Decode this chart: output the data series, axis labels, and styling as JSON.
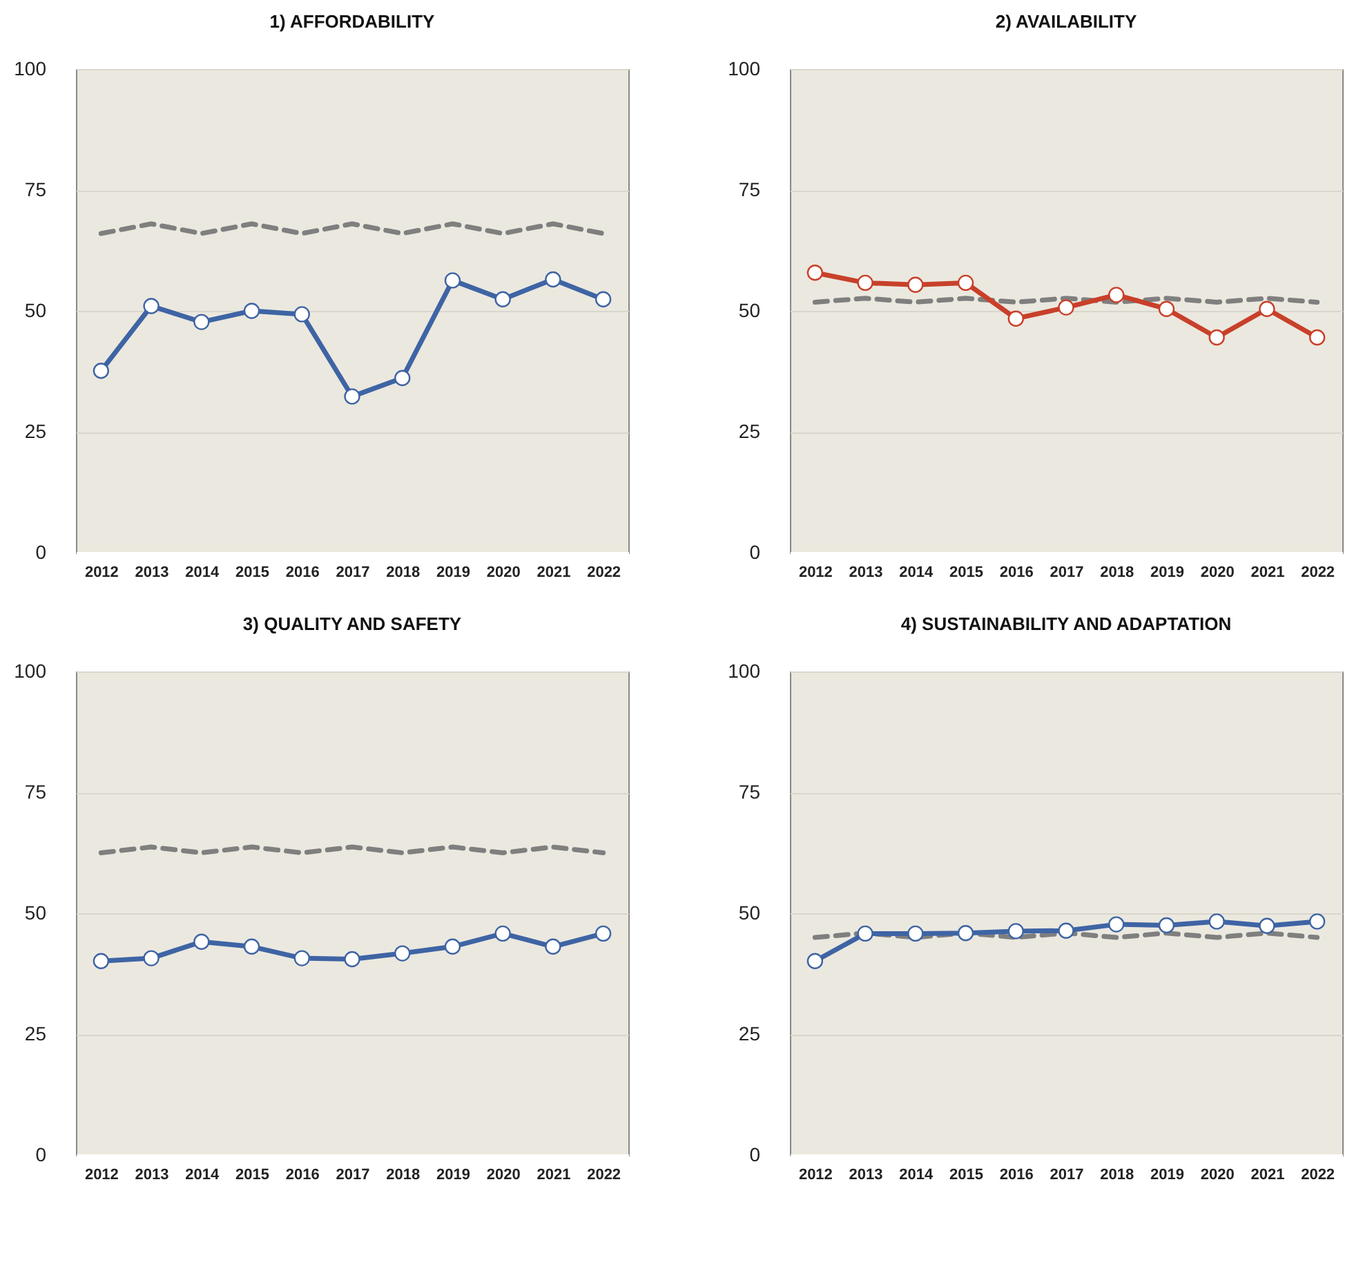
{
  "chart_data": [
    {
      "type": "line",
      "title": "1) AFFORDABILITY",
      "categories": [
        "2012",
        "2013",
        "2014",
        "2015",
        "2016",
        "2017",
        "2018",
        "2019",
        "2020",
        "2021",
        "2022"
      ],
      "ylim": [
        0,
        100
      ],
      "yticks": [
        0,
        25,
        50,
        75,
        100
      ],
      "grid": "y",
      "series": [
        {
          "color": "#7f7f7f",
          "line_style": "dashed",
          "marker": "none",
          "values": [
            66,
            68,
            66,
            68,
            66,
            68,
            66,
            68,
            66,
            68,
            66
          ]
        },
        {
          "color": "#3e64a4",
          "line_style": "solid",
          "marker": "circle",
          "values": [
            37.6,
            51,
            47.7,
            50,
            49.3,
            32.3,
            36.1,
            56.3,
            52.4,
            56.5,
            52.4
          ]
        }
      ]
    },
    {
      "type": "line",
      "title": "2) AVAILABILITY",
      "categories": [
        "2012",
        "2013",
        "2014",
        "2015",
        "2016",
        "2017",
        "2018",
        "2019",
        "2020",
        "2021",
        "2022"
      ],
      "ylim": [
        0,
        100
      ],
      "yticks": [
        0,
        25,
        50,
        75,
        100
      ],
      "grid": "y",
      "series": [
        {
          "color": "#7f7f7f",
          "line_style": "dashed",
          "marker": "none",
          "values": [
            51.8,
            52.6,
            51.8,
            52.6,
            51.8,
            52.6,
            51.8,
            52.6,
            51.8,
            52.6,
            51.8
          ]
        },
        {
          "color": "#c8402a",
          "line_style": "solid",
          "marker": "circle",
          "values": [
            57.9,
            55.8,
            55.4,
            55.8,
            48.4,
            50.7,
            53.3,
            50.4,
            44.5,
            50.4,
            44.5
          ]
        }
      ]
    },
    {
      "type": "line",
      "title": "3) QUALITY AND SAFETY",
      "categories": [
        "2012",
        "2013",
        "2014",
        "2015",
        "2016",
        "2017",
        "2018",
        "2019",
        "2020",
        "2021",
        "2022"
      ],
      "ylim": [
        0,
        100
      ],
      "yticks": [
        0,
        25,
        50,
        75,
        100
      ],
      "grid": "y",
      "series": [
        {
          "color": "#7f7f7f",
          "line_style": "dashed",
          "marker": "none",
          "values": [
            62.5,
            63.7,
            62.5,
            63.7,
            62.5,
            63.7,
            62.5,
            63.7,
            62.5,
            63.7,
            62.5
          ]
        },
        {
          "color": "#3e64a4",
          "line_style": "solid",
          "marker": "circle",
          "values": [
            40.1,
            40.7,
            44.1,
            43.1,
            40.7,
            40.5,
            41.7,
            43.1,
            45.8,
            43.1,
            45.8
          ]
        }
      ]
    },
    {
      "type": "line",
      "title": "4) SUSTAINABILITY AND ADAPTATION",
      "categories": [
        "2012",
        "2013",
        "2014",
        "2015",
        "2016",
        "2017",
        "2018",
        "2019",
        "2020",
        "2021",
        "2022"
      ],
      "ylim": [
        0,
        100
      ],
      "yticks": [
        0,
        25,
        50,
        75,
        100
      ],
      "grid": "y",
      "series": [
        {
          "color": "#7f7f7f",
          "line_style": "dashed",
          "marker": "none",
          "values": [
            45,
            45.9,
            45,
            45.9,
            45,
            45.9,
            45,
            45.9,
            45,
            45.9,
            45
          ]
        },
        {
          "color": "#3e64a4",
          "line_style": "solid",
          "marker": "circle",
          "values": [
            40.1,
            45.8,
            45.8,
            45.9,
            46.3,
            46.4,
            47.7,
            47.5,
            48.3,
            47.4,
            48.3
          ]
        }
      ]
    }
  ]
}
